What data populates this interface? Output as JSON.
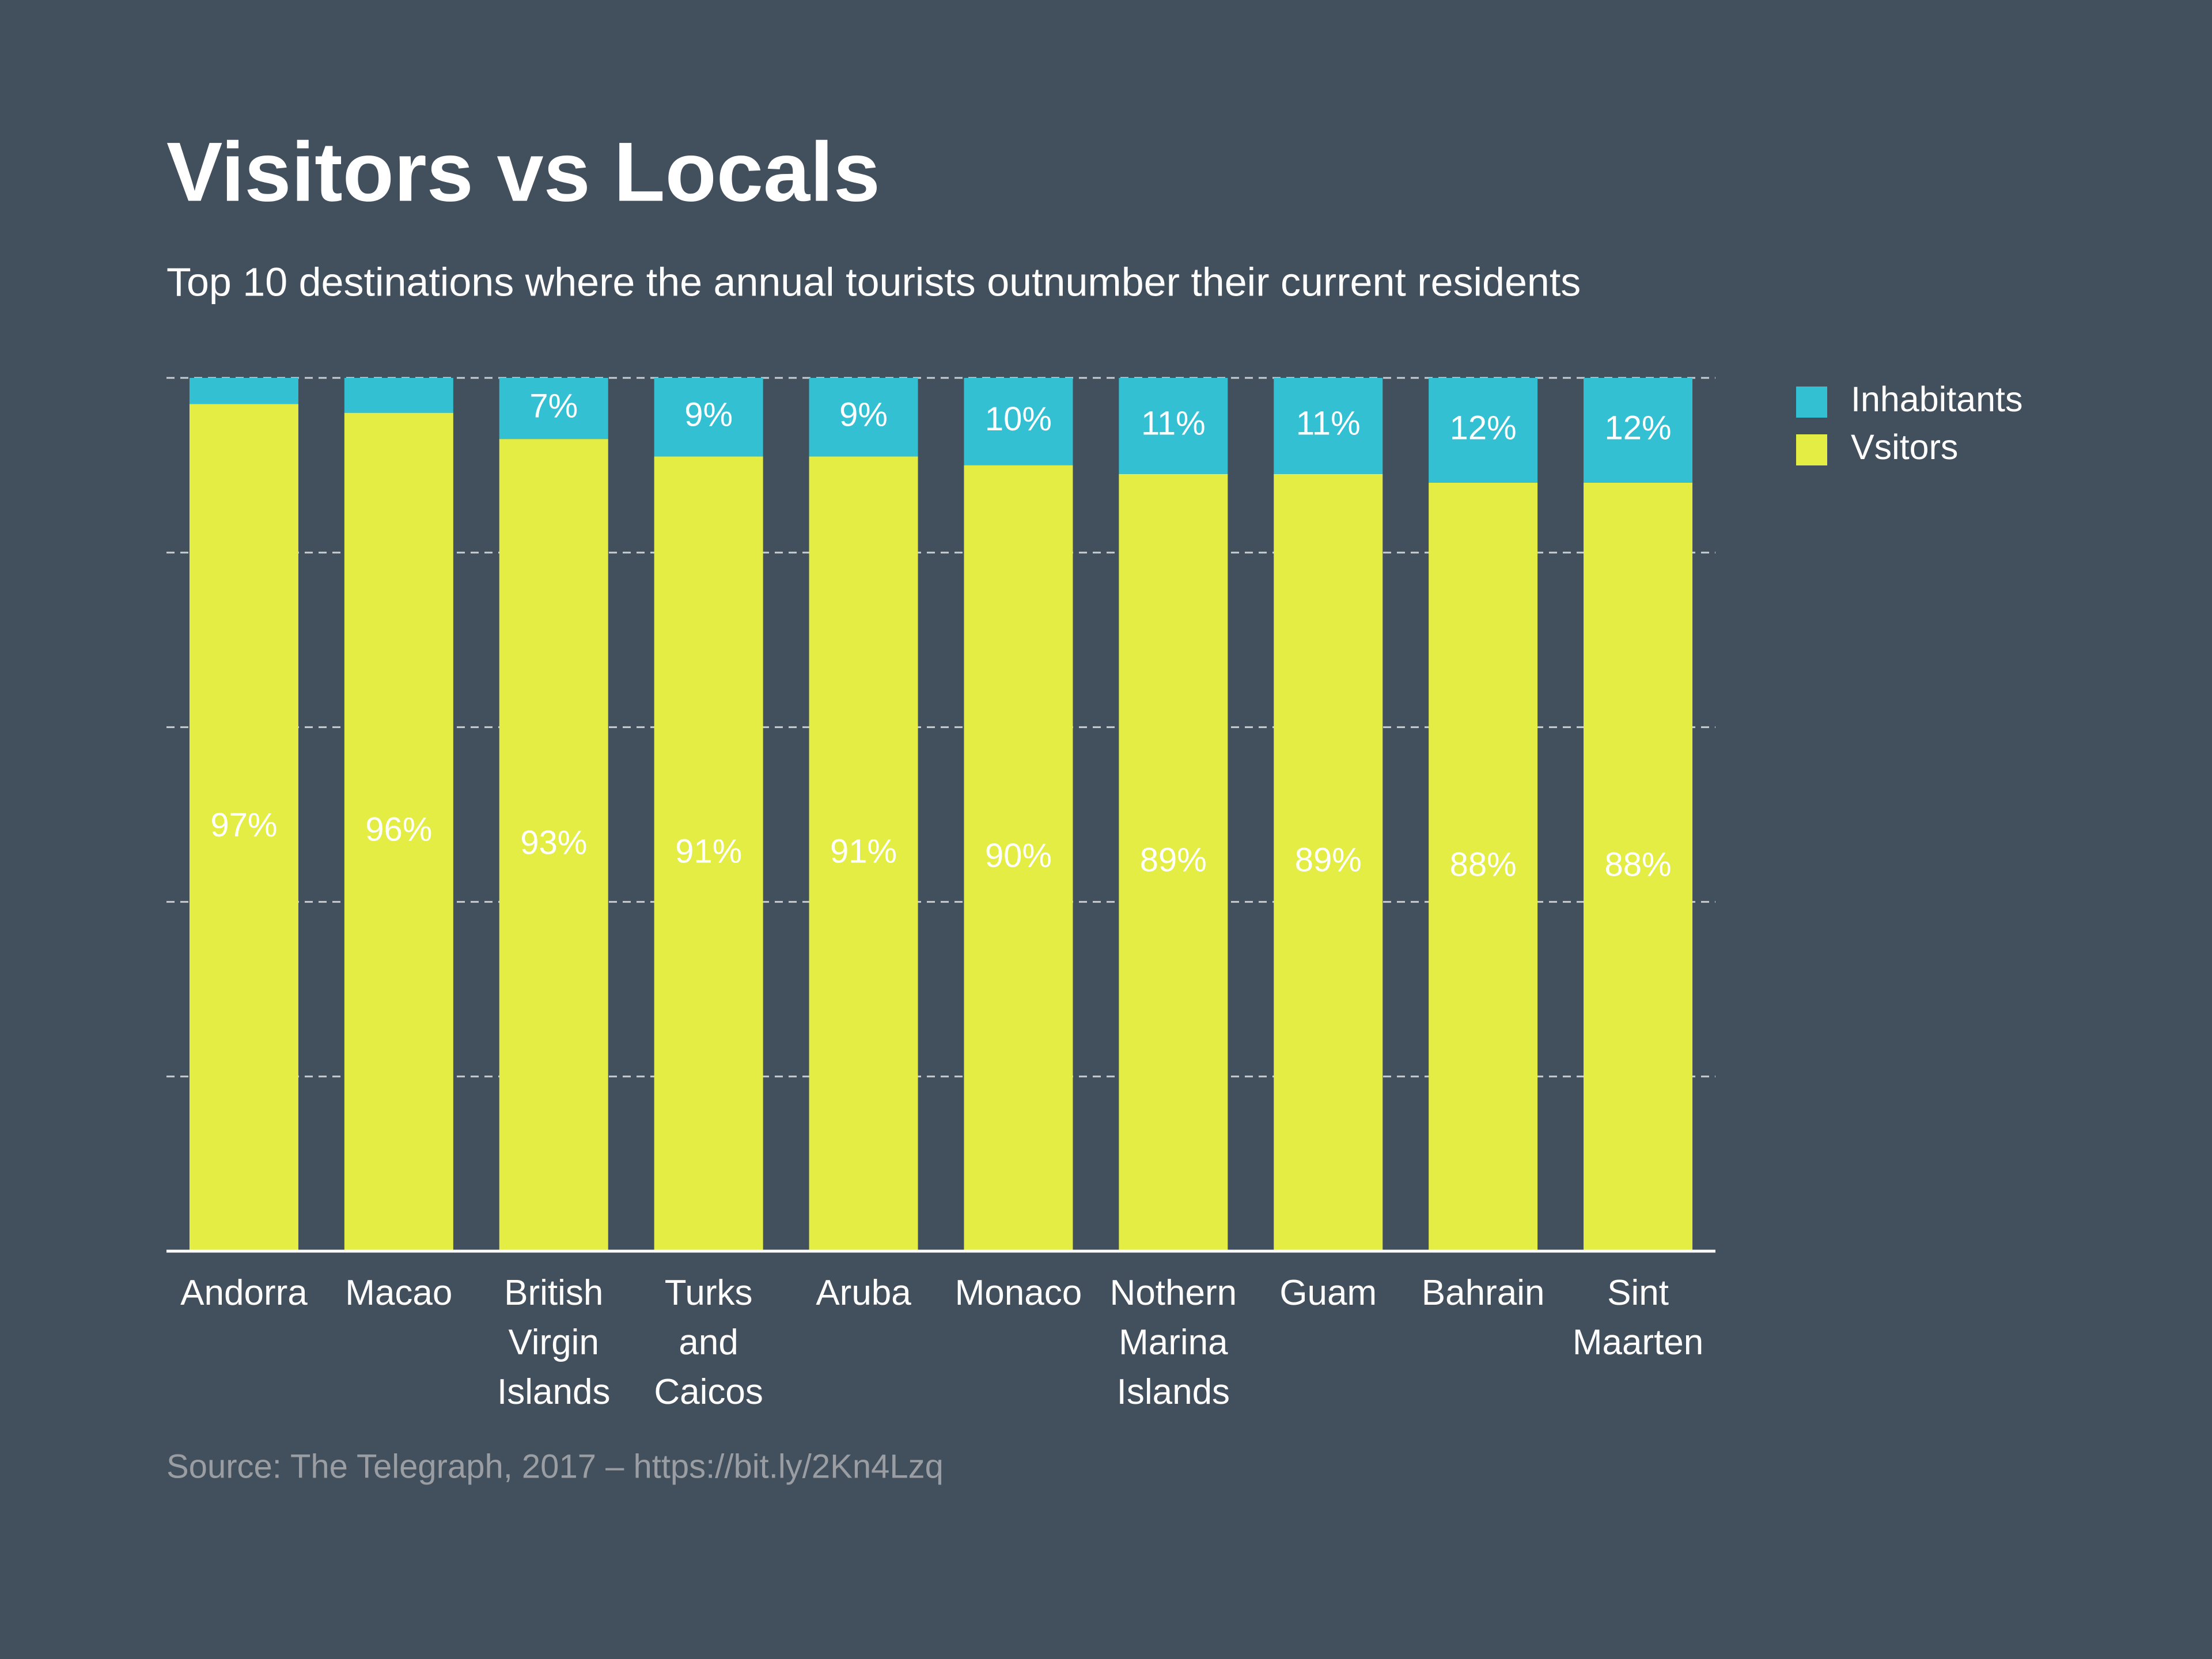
{
  "chart_data": {
    "type": "stacked_bar",
    "title": "Visitors vs Locals",
    "subtitle": "Top 10 destinations where the annual tourists outnumber their current residents",
    "source": "Source: The Telegraph, 2017 – https://bit.ly/2Kn4Lzq",
    "categories": [
      "Andorra",
      "Macao",
      "British\nVirgin\nIslands",
      "Turks and\nCaicos",
      "Aruba",
      "Monaco",
      "Nothern\nMarina\nIslands",
      "Guam",
      "Bahrain",
      "Sint\nMaarten"
    ],
    "series": [
      {
        "name": "Vsitors",
        "color": "#e4ed43",
        "values": [
          97,
          96,
          93,
          91,
          91,
          90,
          89,
          89,
          88,
          88
        ],
        "value_labels": [
          "97%",
          "96%",
          "93%",
          "91%",
          "91%",
          "90%",
          "89%",
          "89%",
          "88%",
          "88%"
        ]
      },
      {
        "name": "Inhabitants",
        "color": "#33c0d2",
        "values": [
          3,
          4,
          7,
          9,
          9,
          10,
          11,
          11,
          12,
          12
        ],
        "value_labels": [
          null,
          null,
          "7%",
          "9%",
          "9%",
          "10%",
          "11%",
          "11%",
          "12%",
          "12%"
        ]
      }
    ],
    "ylim": [
      0,
      100
    ],
    "yticks": [
      0,
      20,
      40,
      60,
      80,
      100
    ],
    "grid": true,
    "legend": "right"
  }
}
